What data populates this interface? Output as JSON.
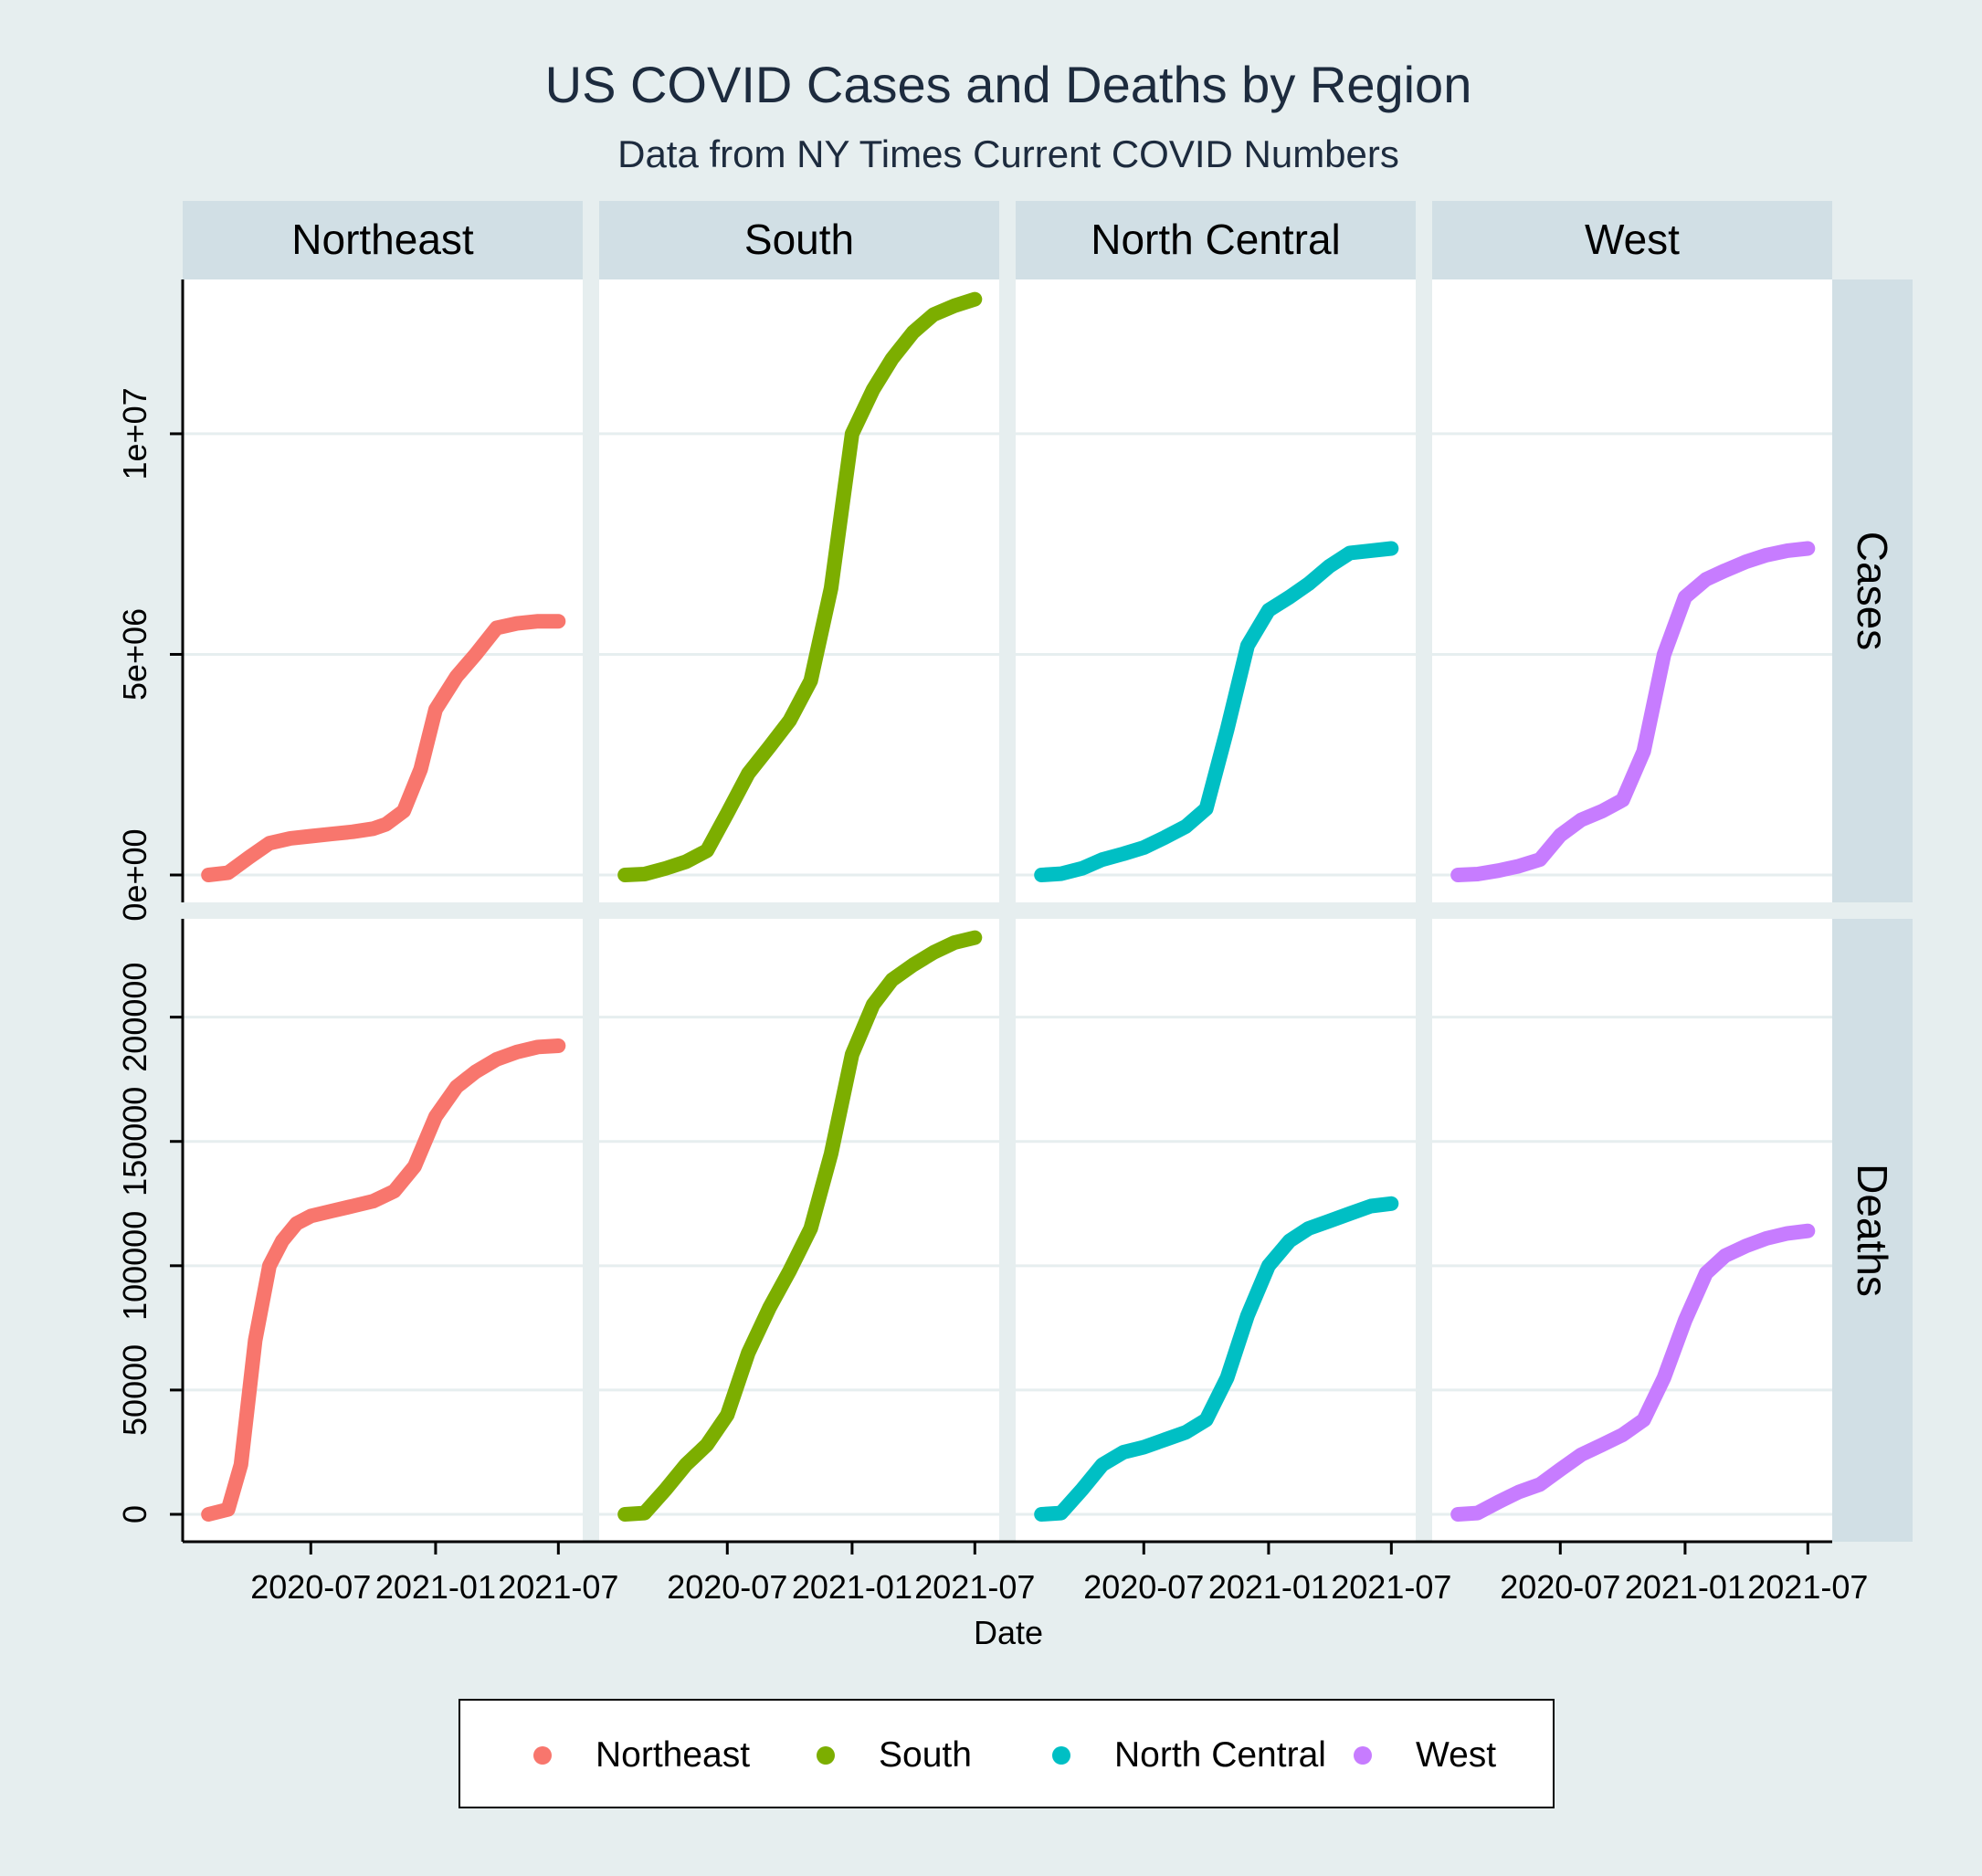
{
  "chart_data": {
    "type": "line",
    "title": "US COVID Cases and Deaths by Region",
    "subtitle": "Data from NY Times Current COVID Numbers",
    "xlabel": "Date",
    "x_ticks": [
      "2020-07",
      "2021-01",
      "2021-07"
    ],
    "x_range": [
      "2020-01-21",
      "2021-07-10"
    ],
    "columns": [
      "Northeast",
      "South",
      "North Central",
      "West"
    ],
    "rows": [
      "Cases",
      "Deaths"
    ],
    "y_axis": {
      "Cases": {
        "range": [
          0,
          13000000
        ],
        "ticks": [
          0,
          5000000,
          10000000
        ],
        "tick_labels": [
          "0e+00",
          "5e+06",
          "1e+07"
        ]
      },
      "Deaths": {
        "range": [
          0,
          230000
        ],
        "ticks": [
          0,
          50000,
          100000,
          150000,
          200000
        ],
        "tick_labels": [
          "0",
          "50000",
          "100000",
          "150000",
          "200000"
        ]
      }
    },
    "grid": true,
    "legend_position": "bottom",
    "colors": {
      "Northeast": "#f8766d",
      "South": "#7cae00",
      "North Central": "#00bfc4",
      "West": "#c77cff"
    },
    "series": [
      {
        "name": "Northeast",
        "cases": {
          "x": [
            "2020-02-01",
            "2020-03-01",
            "2020-04-01",
            "2020-05-01",
            "2020-06-01",
            "2020-07-01",
            "2020-08-01",
            "2020-09-01",
            "2020-10-01",
            "2020-10-20",
            "2020-11-15",
            "2020-12-10",
            "2021-01-01",
            "2021-02-01",
            "2021-03-01",
            "2021-04-01",
            "2021-05-01",
            "2021-06-01",
            "2021-07-01"
          ],
          "y": [
            0,
            50000,
            400000,
            720000,
            830000,
            880000,
            930000,
            980000,
            1050000,
            1150000,
            1450000,
            2400000,
            3750000,
            4500000,
            5000000,
            5600000,
            5700000,
            5750000,
            5750000
          ]
        },
        "deaths": {
          "x": [
            "2020-02-01",
            "2020-03-01",
            "2020-03-20",
            "2020-04-10",
            "2020-05-01",
            "2020-05-20",
            "2020-06-10",
            "2020-07-01",
            "2020-08-01",
            "2020-09-01",
            "2020-10-01",
            "2020-11-01",
            "2020-12-01",
            "2021-01-01",
            "2021-02-01",
            "2021-03-01",
            "2021-04-01",
            "2021-05-01",
            "2021-06-01",
            "2021-07-01"
          ],
          "y": [
            0,
            2000,
            20000,
            70000,
            100000,
            110000,
            117000,
            120000,
            122000,
            124000,
            126000,
            130000,
            140000,
            160000,
            172000,
            178000,
            183000,
            186000,
            188000,
            188500
          ]
        }
      },
      {
        "name": "South",
        "cases": {
          "x": [
            "2020-02-01",
            "2020-03-01",
            "2020-04-01",
            "2020-05-01",
            "2020-06-01",
            "2020-07-01",
            "2020-08-01",
            "2020-09-01",
            "2020-10-01",
            "2020-11-01",
            "2020-12-01",
            "2021-01-01",
            "2021-02-01",
            "2021-03-01",
            "2021-04-01",
            "2021-05-01",
            "2021-06-01",
            "2021-07-01"
          ],
          "y": [
            0,
            20000,
            150000,
            300000,
            550000,
            1400000,
            2300000,
            2900000,
            3500000,
            4400000,
            6500000,
            10000000,
            11000000,
            11700000,
            12300000,
            12700000,
            12900000,
            13050000
          ]
        },
        "deaths": {
          "x": [
            "2020-02-01",
            "2020-03-01",
            "2020-04-01",
            "2020-05-01",
            "2020-06-01",
            "2020-07-01",
            "2020-08-01",
            "2020-09-01",
            "2020-10-01",
            "2020-11-01",
            "2020-12-01",
            "2021-01-01",
            "2021-02-01",
            "2021-03-01",
            "2021-04-01",
            "2021-05-01",
            "2021-06-01",
            "2021-07-01"
          ],
          "y": [
            0,
            500,
            10000,
            20000,
            28000,
            40000,
            65000,
            83000,
            98000,
            115000,
            145000,
            185000,
            205000,
            215000,
            221000,
            226000,
            230000,
            232000
          ]
        }
      },
      {
        "name": "North Central",
        "cases": {
          "x": [
            "2020-02-01",
            "2020-03-01",
            "2020-04-01",
            "2020-05-01",
            "2020-06-01",
            "2020-07-01",
            "2020-08-01",
            "2020-09-01",
            "2020-10-01",
            "2020-11-01",
            "2020-12-01",
            "2021-01-01",
            "2021-02-01",
            "2021-03-01",
            "2021-04-01",
            "2021-05-01",
            "2021-06-01",
            "2021-07-01"
          ],
          "y": [
            0,
            30000,
            150000,
            350000,
            480000,
            620000,
            850000,
            1100000,
            1500000,
            3300000,
            5200000,
            6000000,
            6300000,
            6600000,
            7000000,
            7300000,
            7350000,
            7400000
          ]
        },
        "deaths": {
          "x": [
            "2020-02-01",
            "2020-03-01",
            "2020-04-01",
            "2020-05-01",
            "2020-06-01",
            "2020-07-01",
            "2020-08-01",
            "2020-09-01",
            "2020-10-01",
            "2020-11-01",
            "2020-12-01",
            "2021-01-01",
            "2021-02-01",
            "2021-03-01",
            "2021-04-01",
            "2021-05-01",
            "2021-06-01",
            "2021-07-01"
          ],
          "y": [
            0,
            500,
            10000,
            20000,
            25000,
            27000,
            30000,
            33000,
            38000,
            55000,
            80000,
            100000,
            110000,
            115000,
            118000,
            121000,
            124000,
            125000
          ]
        }
      },
      {
        "name": "West",
        "cases": {
          "x": [
            "2020-02-01",
            "2020-03-01",
            "2020-04-01",
            "2020-05-01",
            "2020-06-01",
            "2020-07-01",
            "2020-08-01",
            "2020-09-01",
            "2020-10-01",
            "2020-11-01",
            "2020-12-01",
            "2021-01-01",
            "2021-02-01",
            "2021-03-01",
            "2021-04-01",
            "2021-05-01",
            "2021-06-01",
            "2021-07-01"
          ],
          "y": [
            0,
            20000,
            100000,
            200000,
            350000,
            900000,
            1250000,
            1450000,
            1700000,
            2800000,
            5000000,
            6300000,
            6700000,
            6900000,
            7100000,
            7250000,
            7350000,
            7400000
          ]
        },
        "deaths": {
          "x": [
            "2020-02-01",
            "2020-03-01",
            "2020-04-01",
            "2020-05-01",
            "2020-06-01",
            "2020-07-01",
            "2020-08-01",
            "2020-09-01",
            "2020-10-01",
            "2020-11-01",
            "2020-12-01",
            "2021-01-01",
            "2021-02-01",
            "2021-03-01",
            "2021-04-01",
            "2021-05-01",
            "2021-06-01",
            "2021-07-01"
          ],
          "y": [
            0,
            500,
            5000,
            9000,
            12000,
            18000,
            24000,
            28000,
            32000,
            38000,
            55000,
            78000,
            97000,
            104000,
            108000,
            111000,
            113000,
            114000
          ]
        }
      }
    ]
  }
}
